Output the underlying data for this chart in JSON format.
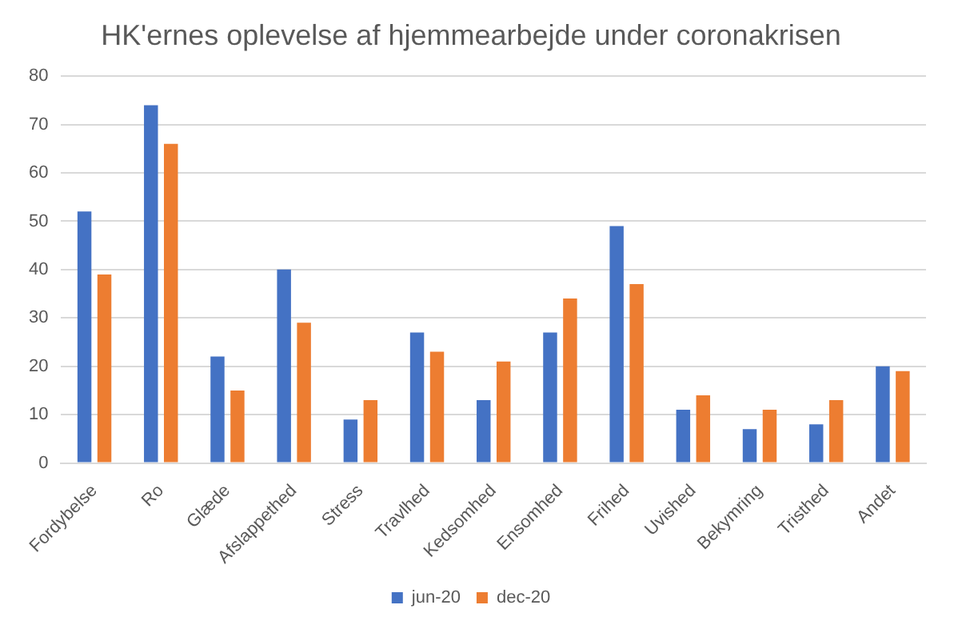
{
  "chart_data": {
    "type": "bar",
    "title": "HK'ernes oplevelse af hjemmearbejde under coronakrisen",
    "categories": [
      "Fordybelse",
      "Ro",
      "Glæde",
      "Afslappethed",
      "Stress",
      "Travlhed",
      "Kedsomhed",
      "Ensomhed",
      "Frihed",
      "Uvished",
      "Bekymring",
      "Tristhed",
      "Andet"
    ],
    "series": [
      {
        "name": "jun-20",
        "color": "#4472c4",
        "values": [
          52,
          74,
          22,
          40,
          9,
          27,
          13,
          27,
          49,
          11,
          7,
          8,
          20
        ]
      },
      {
        "name": "dec-20",
        "color": "#ed7d31",
        "values": [
          39,
          66,
          15,
          29,
          13,
          23,
          21,
          34,
          37,
          14,
          11,
          13,
          19
        ]
      }
    ],
    "ylim": [
      0,
      80
    ],
    "yticks": [
      0,
      10,
      20,
      30,
      40,
      50,
      60,
      70,
      80
    ],
    "grid": "y",
    "legend": "bottom"
  }
}
